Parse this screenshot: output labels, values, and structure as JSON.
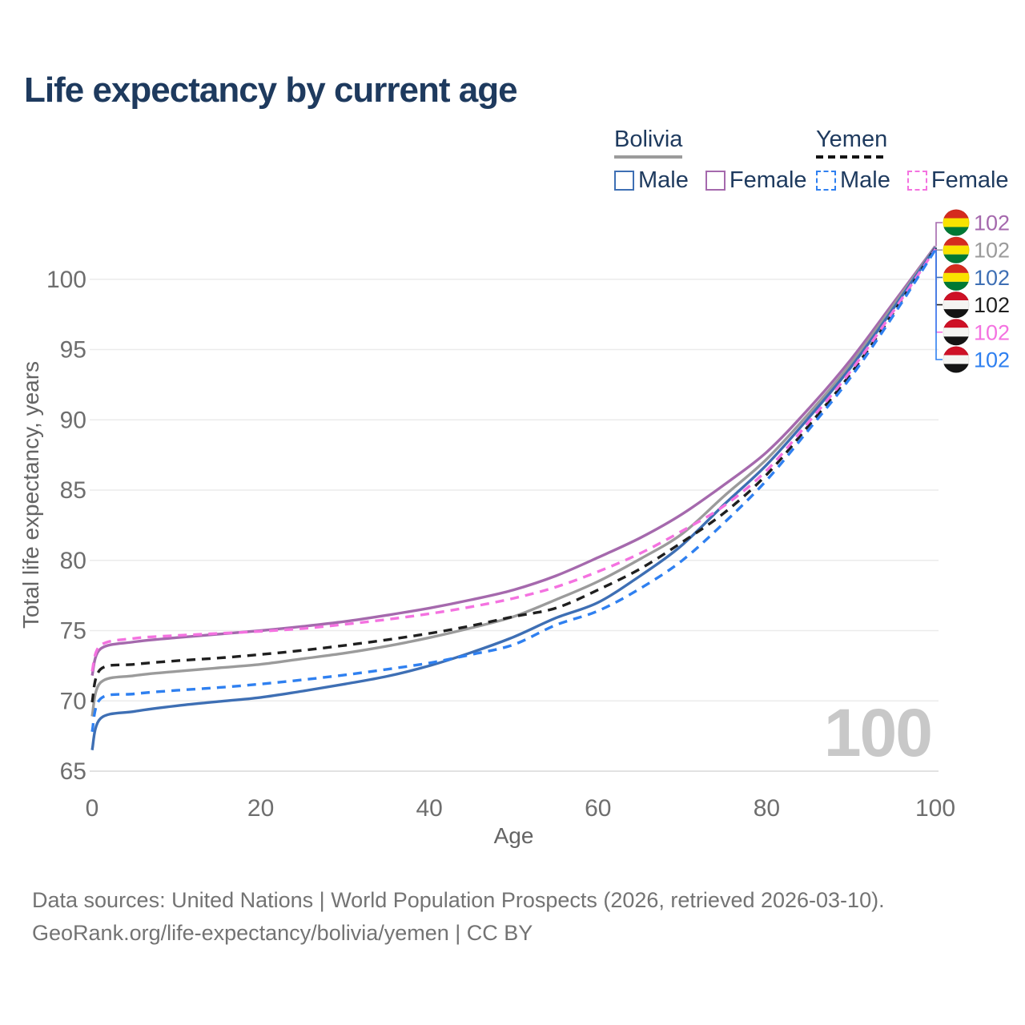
{
  "title": "Life expectancy by current age",
  "legend": {
    "groups": [
      {
        "label": "Bolivia",
        "line_style": "solid",
        "key_color": "#9b9b9b",
        "items": [
          {
            "label": "Male",
            "color": "#3e6fb4",
            "dash": false
          },
          {
            "label": "Female",
            "color": "#a569ad",
            "dash": false
          }
        ]
      },
      {
        "label": "Yemen",
        "line_style": "dashed",
        "key_color": "#141414",
        "items": [
          {
            "label": "Male",
            "color": "#2f80f0",
            "dash": true
          },
          {
            "label": "Female",
            "color": "#f472e0",
            "dash": true
          }
        ]
      }
    ]
  },
  "footer": {
    "line1": "Data sources: United Nations | World Population Prospects (2026, retrieved 2026-03-10).",
    "line2": "GeoRank.org/life-expectancy/bolivia/yemen | CC BY"
  },
  "colors": {
    "title": "#1e3a5e",
    "tick_text": "#6e6e6e",
    "grid": "#ebebeb",
    "grid_bottom": "#d9d9d9",
    "watermark": "#c8c8c8"
  },
  "chart_data": {
    "type": "line",
    "title": "Life expectancy by current age",
    "xlabel": "Age",
    "ylabel": "Total life expectancy, years",
    "xlim": [
      0,
      100
    ],
    "ylim": [
      63.5,
      103.5
    ],
    "xticks": [
      0,
      20,
      40,
      60,
      80,
      100
    ],
    "yticks": [
      65,
      70,
      75,
      80,
      85,
      90,
      95,
      100
    ],
    "grid": "horizontal",
    "legend_position": "top-right",
    "age_indicator": "100",
    "x": [
      0,
      1,
      5,
      10,
      15,
      20,
      25,
      30,
      35,
      40,
      45,
      50,
      55,
      60,
      65,
      70,
      75,
      80,
      85,
      90,
      95,
      100
    ],
    "flag_colors": {
      "Bolivia": [
        "#d52b1e",
        "#f9e300",
        "#007934"
      ],
      "Yemen": [
        "#ce1126",
        "#f4f4f2",
        "#141414"
      ]
    },
    "series": [
      {
        "country": "Bolivia",
        "group": "Female",
        "color": "#a569ad",
        "dash": false,
        "end_label": "102",
        "values": [
          71.8,
          73.7,
          74.2,
          74.5,
          74.75,
          75.0,
          75.3,
          75.65,
          76.1,
          76.6,
          77.2,
          77.9,
          78.9,
          80.2,
          81.6,
          83.3,
          85.4,
          87.7,
          90.8,
          94.3,
          98.3,
          102.35
        ]
      },
      {
        "country": "Bolivia",
        "group": "Both sexes",
        "color": "#9b9b9b",
        "dash": false,
        "end_label": "102",
        "values": [
          68.9,
          71.3,
          71.8,
          72.1,
          72.35,
          72.6,
          73.0,
          73.4,
          73.9,
          74.5,
          75.2,
          76.0,
          77.2,
          78.5,
          80.1,
          81.9,
          84.6,
          87.2,
          90.45,
          94.0,
          98.1,
          102.3
        ]
      },
      {
        "country": "Bolivia",
        "group": "Male",
        "color": "#3e6fb4",
        "dash": false,
        "end_label": "102",
        "values": [
          66.5,
          68.75,
          69.25,
          69.65,
          69.95,
          70.25,
          70.7,
          71.2,
          71.75,
          72.5,
          73.45,
          74.55,
          75.9,
          77.0,
          78.9,
          81.1,
          84.0,
          86.8,
          90.15,
          93.75,
          97.9,
          102.25
        ]
      },
      {
        "country": "Yemen",
        "group": "Both sexes",
        "color": "#1f1f1f",
        "dash": true,
        "end_label": "102",
        "values": [
          69.9,
          72.25,
          72.6,
          72.85,
          73.05,
          73.3,
          73.6,
          73.95,
          74.35,
          74.8,
          75.35,
          76.0,
          76.6,
          77.9,
          79.4,
          81.3,
          83.4,
          86.1,
          89.6,
          93.3,
          97.6,
          102.2
        ]
      },
      {
        "country": "Yemen",
        "group": "Female",
        "color": "#f472e0",
        "dash": true,
        "end_label": "102",
        "values": [
          72.1,
          73.95,
          74.45,
          74.65,
          74.8,
          74.95,
          75.15,
          75.45,
          75.8,
          76.2,
          76.7,
          77.3,
          78.1,
          79.2,
          80.5,
          82.1,
          83.9,
          86.4,
          89.85,
          93.5,
          97.7,
          102.15
        ]
      },
      {
        "country": "Yemen",
        "group": "Male",
        "color": "#2f80f0",
        "dash": true,
        "end_label": "102",
        "values": [
          67.8,
          70.15,
          70.5,
          70.75,
          70.95,
          71.2,
          71.5,
          71.85,
          72.25,
          72.7,
          73.3,
          74.0,
          75.4,
          76.4,
          78.0,
          80.0,
          82.7,
          85.7,
          89.3,
          93.05,
          97.4,
          102.1
        ]
      }
    ]
  }
}
